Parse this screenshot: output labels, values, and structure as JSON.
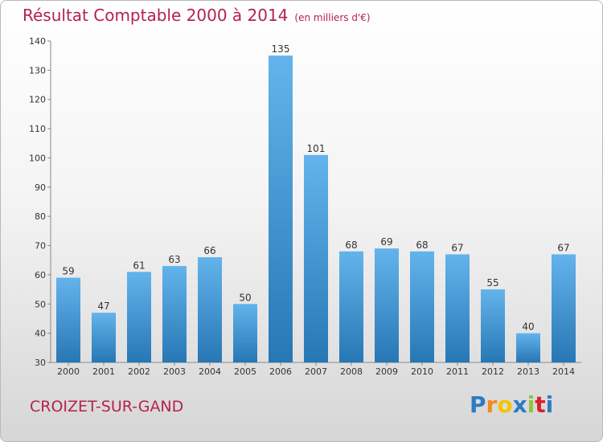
{
  "title": "Résultat Comptable 2000 à 2014",
  "subtitle": "(en milliers d'€)",
  "place": "CROIZET-SUR-GAND",
  "brand": {
    "letters": [
      "P",
      "r",
      "o",
      "x",
      "i",
      "t",
      "i"
    ],
    "colors": [
      "#2e7bc4",
      "#f28a1a",
      "#f5c400",
      "#2e7bc4",
      "#8cc63e",
      "#d8232a",
      "#2e7bc4"
    ]
  },
  "colors": {
    "bar_light": "#63b3ec",
    "bar_dark": "#2777b5",
    "title": "#b4234a"
  },
  "chart_data": {
    "type": "bar",
    "title": "Résultat Comptable 2000 à 2014",
    "xlabel": "",
    "ylabel": "",
    "categories": [
      "2000",
      "2001",
      "2002",
      "2003",
      "2004",
      "2005",
      "2006",
      "2007",
      "2008",
      "2009",
      "2010",
      "2011",
      "2012",
      "2013",
      "2014"
    ],
    "values": [
      59,
      47,
      61,
      63,
      66,
      50,
      135,
      101,
      68,
      69,
      68,
      67,
      55,
      40,
      67
    ],
    "ylim": [
      30,
      140
    ],
    "yticks": [
      30,
      40,
      50,
      60,
      70,
      80,
      90,
      100,
      110,
      120,
      130,
      140
    ],
    "grid": false
  }
}
